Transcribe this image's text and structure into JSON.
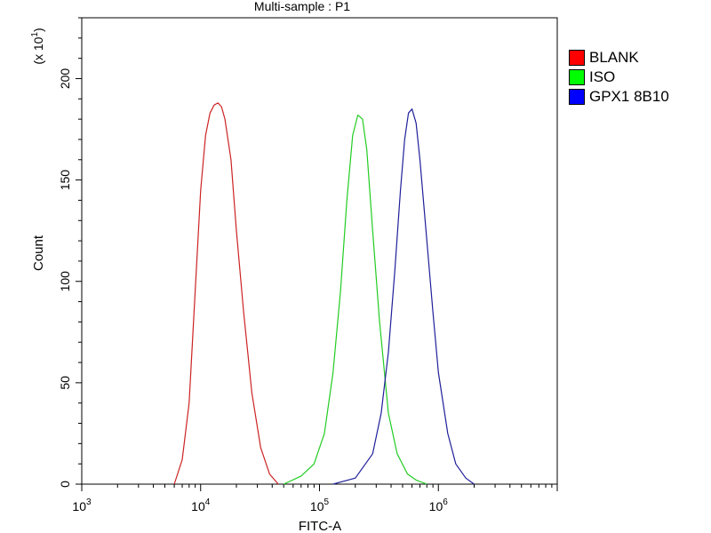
{
  "chart_data": {
    "type": "line",
    "title": "Multi-sample : P1",
    "xlabel": "FITC-A",
    "ylabel": "Count",
    "y_multiplier_label": "(x 10",
    "y_multiplier_exp": "1",
    "x_scale": "log",
    "xlim": [
      1000,
      10000000
    ],
    "ylim": [
      0,
      230
    ],
    "x_tick_labels": [
      {
        "base": "10",
        "exp": "3",
        "value": 1000
      },
      {
        "base": "10",
        "exp": "4",
        "value": 10000
      },
      {
        "base": "10",
        "exp": "5",
        "value": 100000
      },
      {
        "base": "10",
        "exp": "6",
        "value": 1000000
      }
    ],
    "y_ticks": [
      0,
      50,
      100,
      150,
      200
    ],
    "legend_position": "right",
    "series": [
      {
        "name": "BLANK",
        "color": "#cc2222",
        "swatch": "#ff0000",
        "x": [
          6000,
          7000,
          8000,
          9000,
          10000,
          11000,
          12000,
          13000,
          14000,
          15000,
          16000,
          18000,
          20000,
          23000,
          27000,
          32000,
          38000,
          45000
        ],
        "y": [
          0,
          12,
          40,
          95,
          145,
          172,
          183,
          187,
          188,
          186,
          180,
          160,
          125,
          85,
          45,
          18,
          5,
          0
        ]
      },
      {
        "name": "ISO",
        "color": "#22cc22",
        "swatch": "#00ff00",
        "x": [
          50000,
          70000,
          90000,
          110000,
          130000,
          150000,
          170000,
          190000,
          210000,
          230000,
          250000,
          280000,
          320000,
          380000,
          450000,
          550000,
          650000,
          800000
        ],
        "y": [
          0,
          4,
          10,
          25,
          55,
          95,
          140,
          172,
          182,
          180,
          165,
          125,
          80,
          35,
          15,
          5,
          2,
          0
        ]
      },
      {
        "name": "GPX1 8B10",
        "color": "#1f1f99",
        "swatch": "#0000ff",
        "x": [
          130000,
          200000,
          280000,
          330000,
          380000,
          430000,
          480000,
          520000,
          560000,
          600000,
          650000,
          700000,
          800000,
          900000,
          1000000,
          1200000,
          1400000,
          1700000,
          2000000
        ],
        "y": [
          0,
          3,
          15,
          35,
          65,
          105,
          145,
          170,
          183,
          185,
          178,
          160,
          120,
          85,
          55,
          25,
          10,
          3,
          0
        ]
      }
    ]
  }
}
